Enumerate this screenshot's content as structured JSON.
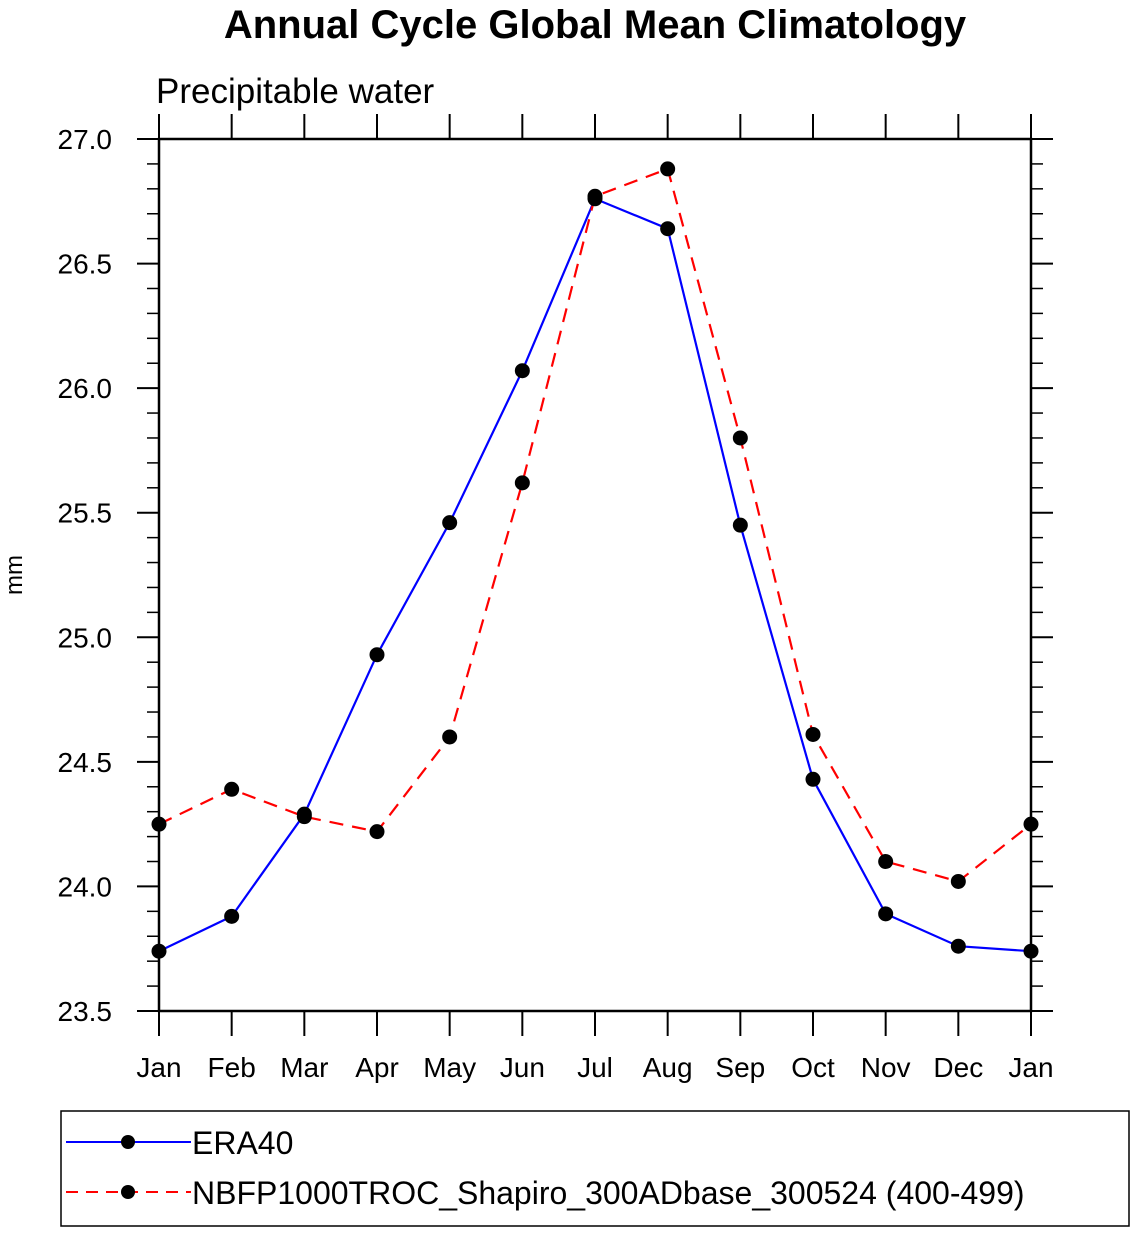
{
  "chart_data": {
    "type": "line",
    "title": "Annual Cycle Global Mean Climatology",
    "subtitle": "Precipitable water",
    "xlabel": "",
    "ylabel": "mm",
    "categories": [
      "Jan",
      "Feb",
      "Mar",
      "Apr",
      "May",
      "Jun",
      "Jul",
      "Aug",
      "Sep",
      "Oct",
      "Nov",
      "Dec",
      "Jan"
    ],
    "ylim": [
      23.5,
      27.0
    ],
    "yticks": [
      23.5,
      24.0,
      24.5,
      25.0,
      25.5,
      26.0,
      26.5,
      27.0
    ],
    "ytick_labels": [
      "23.5",
      "24.0",
      "24.5",
      "25.0",
      "25.5",
      "26.0",
      "26.5",
      "27.0"
    ],
    "y_minor_step": 0.1,
    "grid": false,
    "legend_position": "bottom",
    "series": [
      {
        "name": "ERA40",
        "color": "#0000ff",
        "line_style": "solid",
        "marker": "filled-circle",
        "marker_color": "#000000",
        "values": [
          23.74,
          23.88,
          24.29,
          24.93,
          25.46,
          26.07,
          26.76,
          26.64,
          25.45,
          24.43,
          23.89,
          23.76,
          23.74
        ]
      },
      {
        "name": "NBFP1000TROC_Shapiro_300ADbase_300524 (400-499)",
        "color": "#ff0000",
        "line_style": "dashed",
        "marker": "filled-circle",
        "marker_color": "#000000",
        "values": [
          24.25,
          24.39,
          24.28,
          24.22,
          24.6,
          25.62,
          26.77,
          26.88,
          25.8,
          24.61,
          24.1,
          24.02,
          24.25
        ]
      }
    ]
  }
}
